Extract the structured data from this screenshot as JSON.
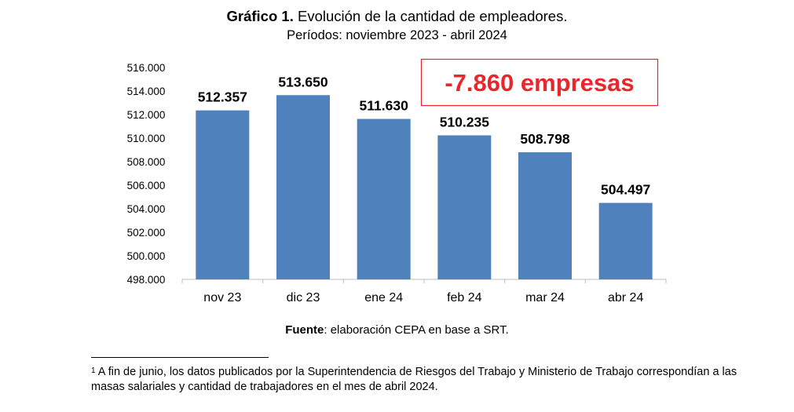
{
  "header": {
    "title_prefix": "Gráfico 1.",
    "title_text": "Evolución de la cantidad de empleadores.",
    "subtitle": "Períodos: noviembre 2023 - abril 2024"
  },
  "chart_data": {
    "type": "bar",
    "categories": [
      "nov 23",
      "dic 23",
      "ene 24",
      "feb 24",
      "mar 24",
      "abr 24"
    ],
    "values": [
      512357,
      513650,
      511630,
      510235,
      508798,
      504497
    ],
    "value_labels": [
      "512.357",
      "513.650",
      "511.630",
      "510.235",
      "508.798",
      "504.497"
    ],
    "ylim": [
      498000,
      516000
    ],
    "yticks": [
      498000,
      500000,
      502000,
      504000,
      506000,
      508000,
      510000,
      512000,
      514000,
      516000
    ],
    "ytick_labels": [
      "498.000",
      "500.000",
      "502.000",
      "504.000",
      "506.000",
      "508.000",
      "510.000",
      "512.000",
      "514.000",
      "516.000"
    ],
    "annotation": "-7.860 empresas",
    "title": "Gráfico 1. Evolución de la cantidad de empleadores.",
    "xlabel": "",
    "ylabel": "",
    "grid": false,
    "bar_color": "#4f81bd",
    "annotation_color": "#e8262b"
  },
  "source": {
    "label": "Fuente",
    "text": ": elaboración CEPA en base a SRT."
  },
  "footnote": {
    "marker": "1",
    "text": " A fin de junio, los datos publicados por la Superintendencia de Riesgos del Trabajo y Ministerio de Trabajo correspondían a las masas salariales y cantidad de trabajadores en el mes de abril 2024."
  }
}
